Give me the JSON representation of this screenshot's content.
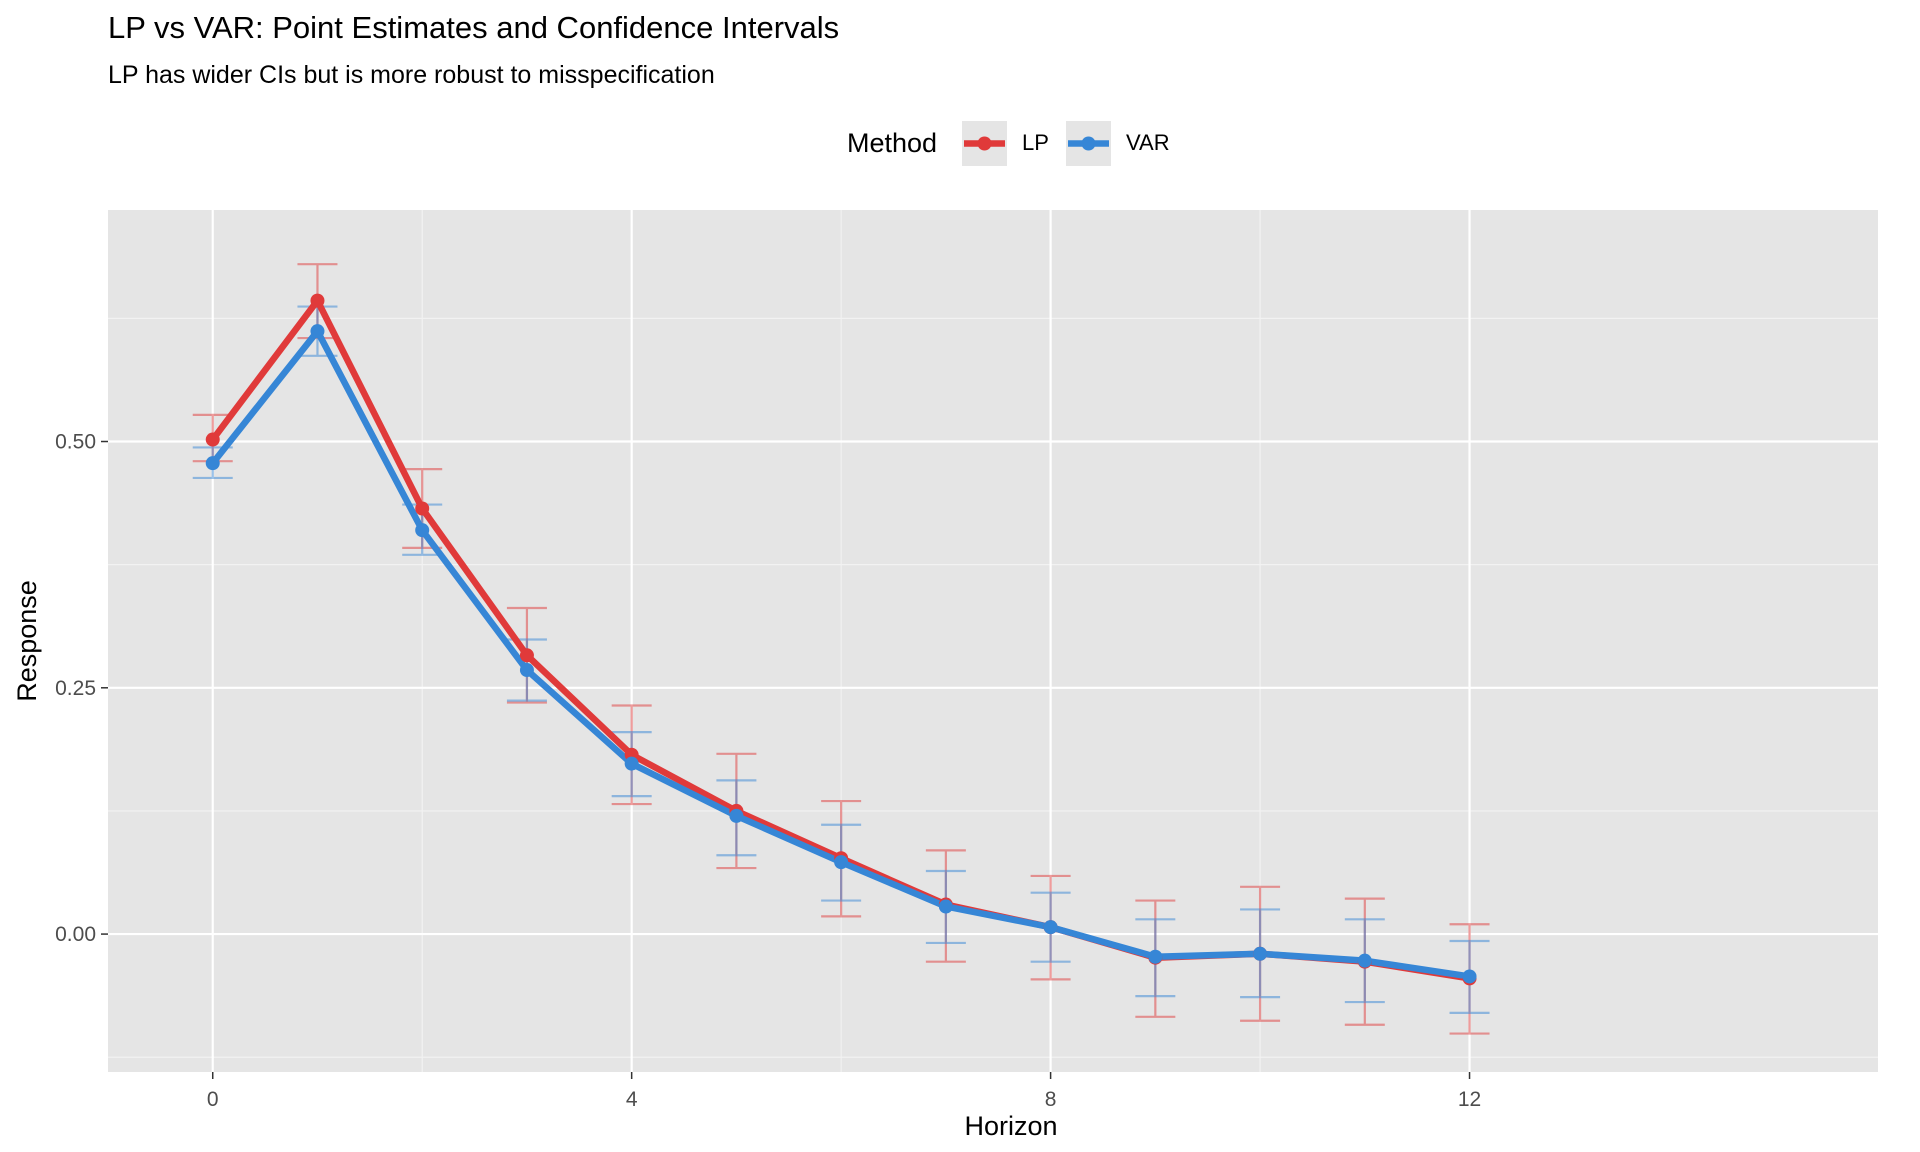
{
  "chart_data": {
    "type": "line",
    "title": "LP vs VAR: Point Estimates and Confidence Intervals",
    "subtitle": "LP has wider CIs but is more robust to misspecification",
    "xlabel": "Horizon",
    "ylabel": "Response",
    "xlim": [
      -1,
      15.9
    ],
    "ylim": [
      -0.14,
      0.735
    ],
    "x_ticks": [
      0,
      4,
      8,
      12
    ],
    "x_tick_labels": [
      "0",
      "4",
      "8",
      "12"
    ],
    "y_ticks": [
      0.0,
      0.25,
      0.5
    ],
    "y_tick_labels": [
      "0.00",
      "0.25",
      "0.50"
    ],
    "grid": true,
    "legend": {
      "title": "Method",
      "position": "top"
    },
    "x": [
      0,
      1,
      2,
      3,
      4,
      5,
      6,
      7,
      8,
      9,
      10,
      11,
      12
    ],
    "series": [
      {
        "name": "LP",
        "color": "#E03A3A",
        "values": [
          0.502,
          0.643,
          0.432,
          0.283,
          0.182,
          0.125,
          0.077,
          0.03,
          0.007,
          -0.024,
          -0.02,
          -0.028,
          -0.045
        ],
        "lower": [
          0.48,
          0.605,
          0.392,
          0.235,
          0.132,
          0.067,
          0.018,
          -0.028,
          -0.046,
          -0.084,
          -0.088,
          -0.092,
          -0.101
        ],
        "upper": [
          0.527,
          0.68,
          0.472,
          0.331,
          0.232,
          0.183,
          0.135,
          0.085,
          0.059,
          0.034,
          0.048,
          0.036,
          0.01
        ]
      },
      {
        "name": "VAR",
        "color": "#3686D6",
        "values": [
          0.478,
          0.612,
          0.41,
          0.268,
          0.173,
          0.12,
          0.073,
          0.028,
          0.007,
          -0.023,
          -0.02,
          -0.027,
          -0.043
        ],
        "lower": [
          0.463,
          0.587,
          0.385,
          0.237,
          0.14,
          0.08,
          0.034,
          -0.009,
          -0.028,
          -0.063,
          -0.064,
          -0.069,
          -0.08
        ],
        "upper": [
          0.494,
          0.637,
          0.436,
          0.299,
          0.205,
          0.156,
          0.111,
          0.064,
          0.042,
          0.015,
          0.025,
          0.015,
          -0.007
        ]
      }
    ]
  }
}
